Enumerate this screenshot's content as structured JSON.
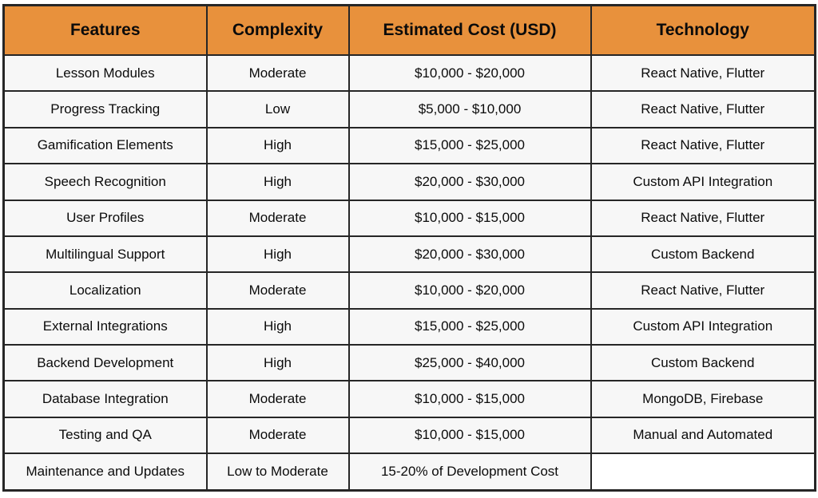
{
  "colors": {
    "header_bg": "#E8913C",
    "row_bg": "#F7F7F7",
    "empty_cell_bg": "#FFFFFF",
    "border": "#262626",
    "text": "#0B0B0B"
  },
  "table": {
    "headers": {
      "features": "Features",
      "complexity": "Complexity",
      "cost": "Estimated Cost (USD)",
      "technology": "Technology"
    },
    "rows": [
      {
        "features": "Lesson Modules",
        "complexity": "Moderate",
        "cost": "$10,000 - $20,000",
        "technology": "React Native, Flutter"
      },
      {
        "features": "Progress Tracking",
        "complexity": "Low",
        "cost": "$5,000 - $10,000",
        "technology": "React Native, Flutter"
      },
      {
        "features": "Gamification Elements",
        "complexity": "High",
        "cost": "$15,000 - $25,000",
        "technology": "React Native, Flutter"
      },
      {
        "features": "Speech Recognition",
        "complexity": "High",
        "cost": "$20,000 - $30,000",
        "technology": "Custom API Integration"
      },
      {
        "features": "User Profiles",
        "complexity": "Moderate",
        "cost": "$10,000 - $15,000",
        "technology": "React Native, Flutter"
      },
      {
        "features": "Multilingual Support",
        "complexity": "High",
        "cost": "$20,000 - $30,000",
        "technology": "Custom Backend"
      },
      {
        "features": "Localization",
        "complexity": "Moderate",
        "cost": "$10,000 - $20,000",
        "technology": "React Native, Flutter"
      },
      {
        "features": "External Integrations",
        "complexity": "High",
        "cost": "$15,000 - $25,000",
        "technology": "Custom API Integration"
      },
      {
        "features": "Backend Development",
        "complexity": "High",
        "cost": "$25,000 - $40,000",
        "technology": "Custom Backend"
      },
      {
        "features": "Database Integration",
        "complexity": "Moderate",
        "cost": "$10,000 - $15,000",
        "technology": "MongoDB, Firebase"
      },
      {
        "features": "Testing and QA",
        "complexity": "Moderate",
        "cost": "$10,000 - $15,000",
        "technology": "Manual and Automated"
      },
      {
        "features": "Maintenance and Updates",
        "complexity": "Low to Moderate",
        "cost": "15-20% of Development Cost",
        "technology": ""
      }
    ]
  }
}
